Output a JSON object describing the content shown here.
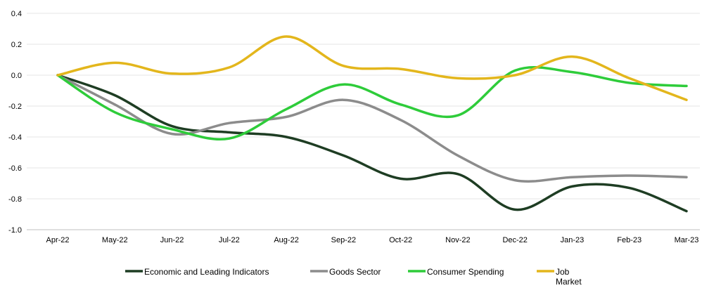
{
  "chart_data": {
    "type": "line",
    "categories": [
      "Apr-22",
      "May-22",
      "Jun-22",
      "Jul-22",
      "Aug-22",
      "Sep-22",
      "Oct-22",
      "Nov-22",
      "Dec-22",
      "Jan-23",
      "Feb-23",
      "Mar-23"
    ],
    "ylim": [
      -1.0,
      0.4
    ],
    "yticks": [
      0.4,
      0.2,
      0.0,
      -0.2,
      -0.4,
      -0.6,
      -0.8,
      -1.0
    ],
    "ytick_labels": [
      "0.4",
      "0.2",
      "0.0",
      "-0.2",
      "-0.4",
      "-0.6",
      "-0.8",
      "-1.0"
    ],
    "grid": "horizontal",
    "legend_position": "bottom",
    "series": [
      {
        "name": "Economic and Leading Indicators",
        "color": "#1e3d23",
        "values": [
          0.0,
          -0.13,
          -0.33,
          -0.37,
          -0.4,
          -0.52,
          -0.67,
          -0.64,
          -0.87,
          -0.72,
          -0.73,
          -0.88
        ]
      },
      {
        "name": "Goods Sector",
        "color": "#8c8c8c",
        "values": [
          0.0,
          -0.19,
          -0.38,
          -0.31,
          -0.27,
          -0.16,
          -0.29,
          -0.52,
          -0.68,
          -0.66,
          -0.65,
          -0.66
        ]
      },
      {
        "name": "Consumer Spending",
        "color": "#2ecc3a",
        "values": [
          0.0,
          -0.24,
          -0.35,
          -0.41,
          -0.22,
          -0.06,
          -0.19,
          -0.26,
          0.03,
          0.02,
          -0.05,
          -0.07
        ]
      },
      {
        "name": "Job\nMarket",
        "color": "#e3b61c",
        "values": [
          0.0,
          0.08,
          0.01,
          0.05,
          0.25,
          0.06,
          0.04,
          -0.02,
          0.0,
          0.12,
          -0.02,
          -0.16
        ]
      }
    ]
  },
  "legend": {
    "items": [
      "Economic and Leading Indicators",
      "Goods Sector",
      "Consumer Spending",
      "Job"
    ],
    "job_line2": "Market"
  }
}
